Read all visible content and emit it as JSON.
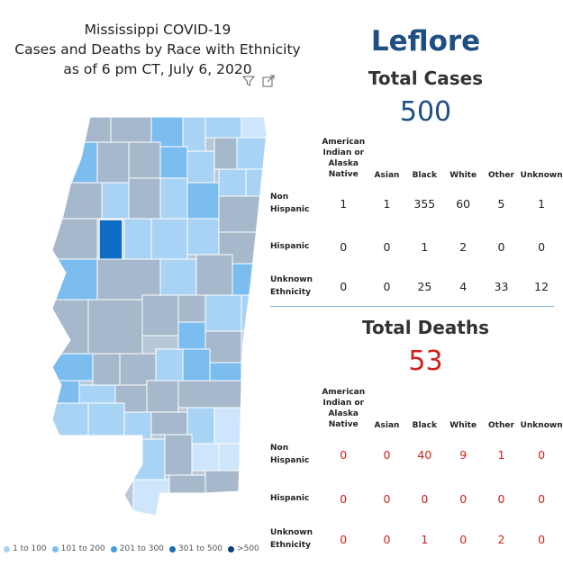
{
  "title": {
    "line1": "Mississippi COVID-19",
    "line2": "Cases and Deaths by Race with Ethnicity",
    "line3": "as of 6 pm CT, July 6, 2020"
  },
  "icons": [
    "filter-icon",
    "focus-mode-icon"
  ],
  "county": "Leflore",
  "cases": {
    "label": "Total Cases",
    "total": "500",
    "headers": [
      "American Indian or Alaska Native",
      "Asian",
      "Black",
      "White",
      "Other",
      "Unknown"
    ],
    "rows": [
      {
        "label": "Non Hispanic",
        "values": [
          "1",
          "1",
          "355",
          "60",
          "5",
          "1"
        ]
      },
      {
        "label": "Hispanic",
        "values": [
          "0",
          "0",
          "1",
          "2",
          "0",
          "0"
        ]
      },
      {
        "label": "Unknown Ethnicity",
        "values": [
          "0",
          "0",
          "25",
          "4",
          "33",
          "12"
        ]
      }
    ]
  },
  "deaths": {
    "label": "Total Deaths",
    "total": "53",
    "headers": [
      "American Indian or Alaska Native",
      "Asian",
      "Black",
      "White",
      "Other",
      "Unknown"
    ],
    "rows": [
      {
        "label": "Non Hispanic",
        "values": [
          "0",
          "0",
          "40",
          "9",
          "1",
          "0"
        ]
      },
      {
        "label": "Hispanic",
        "values": [
          "0",
          "0",
          "0",
          "0",
          "0",
          "0"
        ]
      },
      {
        "label": "Unknown Ethnicity",
        "values": [
          "0",
          "0",
          "1",
          "0",
          "2",
          "0"
        ]
      }
    ]
  },
  "legend": [
    {
      "label": "1 to 100",
      "color": "#a9d3f5"
    },
    {
      "label": "101 to 200",
      "color": "#7cbdf0"
    },
    {
      "label": "201 to 300",
      "color": "#3f9be6"
    },
    {
      "label": "301 to 500",
      "color": "#1c6bb8"
    },
    {
      "label": ">500",
      "color": "#0b3f7a"
    }
  ],
  "colors": {
    "county_title": "#1e4f82",
    "cases_total": "#1e4f82",
    "deaths_total": "#d0211b",
    "map_selected": "#0f6cc4",
    "map_unselected": "#a6b8cb"
  }
}
